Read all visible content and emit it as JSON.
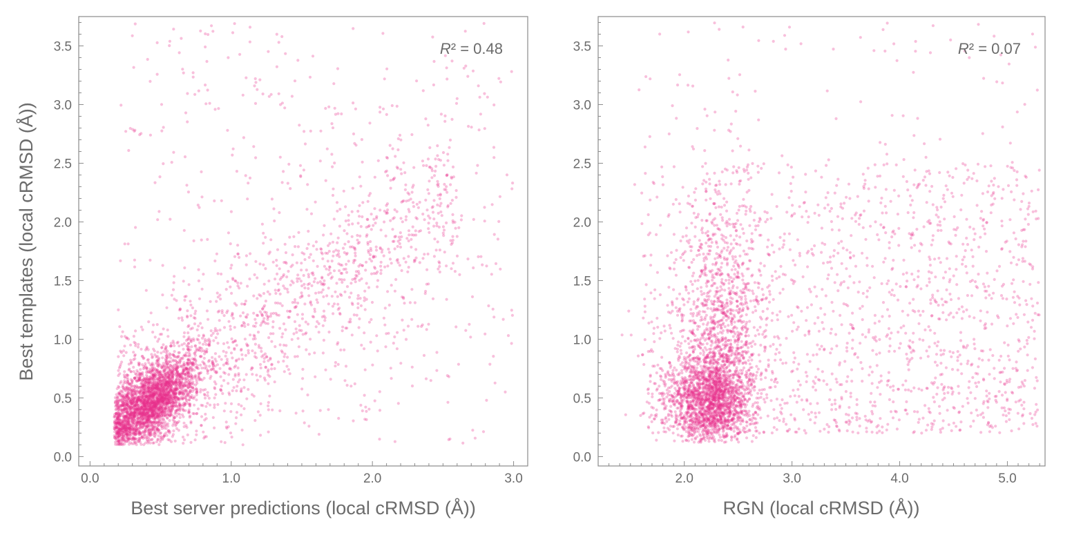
{
  "chart_data": [
    {
      "type": "scatter",
      "xlabel": "Best server predictions (local cRMSD (Å))",
      "ylabel": "Best templates (local cRMSD (Å))",
      "annotation_var": "R",
      "annotation_rest": "² = 0.48",
      "xlim": [
        -0.08,
        3.1
      ],
      "ylim": [
        -0.08,
        3.75
      ],
      "xticks": [
        "0.0",
        "1.0",
        "2.0",
        "3.0"
      ],
      "yticks": [
        "0.0",
        "0.5",
        "1.0",
        "1.5",
        "2.0",
        "2.5",
        "3.0",
        "3.5"
      ],
      "color": "#e8308a",
      "point_count_estimate": 4500,
      "cluster": {
        "x_center": 0.45,
        "y_center": 0.5
      },
      "trend": "positive correlation, dense cluster near (0.4, 0.5), spreading to (2.5, 2.0)"
    },
    {
      "type": "scatter",
      "xlabel": "RGN (local cRMSD (Å))",
      "ylabel": "",
      "annotation_var": "R",
      "annotation_rest": "² = 0.07",
      "xlim": [
        1.2,
        5.35
      ],
      "ylim": [
        -0.08,
        3.75
      ],
      "xticks": [
        "2.0",
        "3.0",
        "4.0",
        "5.0"
      ],
      "yticks": [
        "0.0",
        "0.5",
        "1.0",
        "1.5",
        "2.0",
        "2.5",
        "3.0",
        "3.5"
      ],
      "color": "#e8308a",
      "point_count_estimate": 4500,
      "cluster": {
        "x_center": 2.25,
        "y_center": 0.5
      },
      "trend": "weak correlation, dense cluster near (2.2, 0.5), broad spread to x = 5.3"
    }
  ]
}
